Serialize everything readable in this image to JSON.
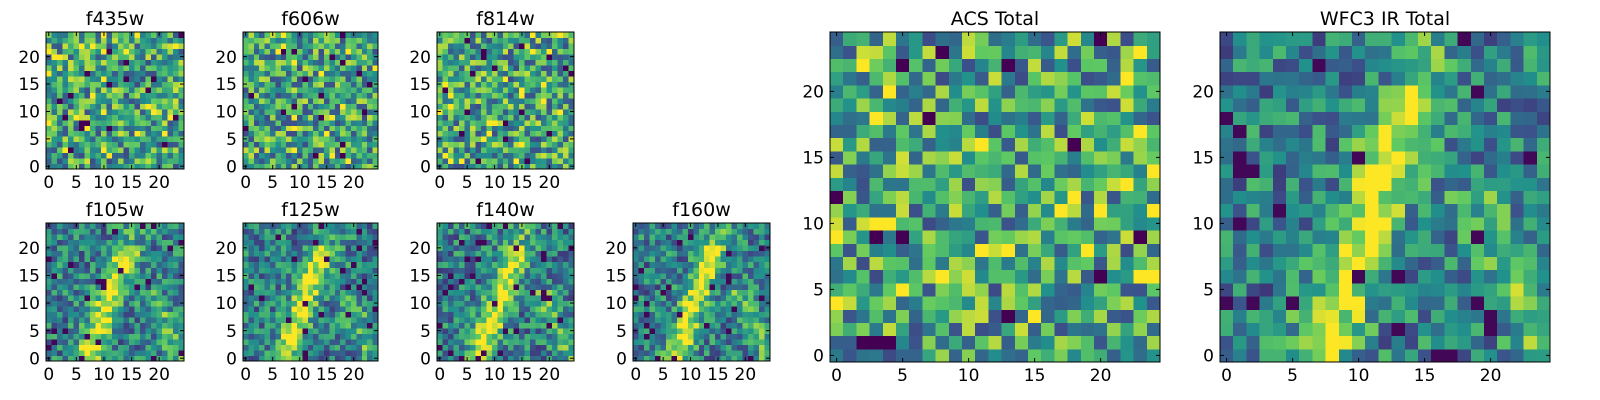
{
  "chart_data": [
    {
      "type": "heatmap",
      "title": "f435w",
      "xlim": [
        0,
        24
      ],
      "ylim": [
        0,
        24
      ],
      "xticks": [
        "0",
        "5",
        "10",
        "15",
        "20"
      ],
      "yticks": [
        "0",
        "5",
        "10",
        "15",
        "20"
      ],
      "grid": false,
      "pattern": "noise",
      "seed": 11
    },
    {
      "type": "heatmap",
      "title": "f606w",
      "xlim": [
        0,
        24
      ],
      "ylim": [
        0,
        24
      ],
      "xticks": [
        "0",
        "5",
        "10",
        "15",
        "20"
      ],
      "yticks": [
        "0",
        "5",
        "10",
        "15",
        "20"
      ],
      "grid": false,
      "pattern": "noise",
      "seed": 23
    },
    {
      "type": "heatmap",
      "title": "f814w",
      "xlim": [
        0,
        24
      ],
      "ylim": [
        0,
        24
      ],
      "xticks": [
        "0",
        "5",
        "10",
        "15",
        "20"
      ],
      "yticks": [
        "0",
        "5",
        "10",
        "15",
        "20"
      ],
      "grid": false,
      "pattern": "noise",
      "seed": 37
    },
    {
      "type": "heatmap",
      "title": "f105w",
      "xlim": [
        0,
        24
      ],
      "ylim": [
        0,
        24
      ],
      "xticks": [
        "0",
        "5",
        "10",
        "15",
        "20"
      ],
      "yticks": [
        "0",
        "5",
        "10",
        "15",
        "20"
      ],
      "grid": false,
      "pattern": "arc",
      "seed": 41
    },
    {
      "type": "heatmap",
      "title": "f125w",
      "xlim": [
        0,
        24
      ],
      "ylim": [
        0,
        24
      ],
      "xticks": [
        "0",
        "5",
        "10",
        "15",
        "20"
      ],
      "yticks": [
        "0",
        "5",
        "10",
        "15",
        "20"
      ],
      "grid": false,
      "pattern": "arc",
      "seed": 53
    },
    {
      "type": "heatmap",
      "title": "f140w",
      "xlim": [
        0,
        24
      ],
      "ylim": [
        0,
        24
      ],
      "xticks": [
        "0",
        "5",
        "10",
        "15",
        "20"
      ],
      "yticks": [
        "0",
        "5",
        "10",
        "15",
        "20"
      ],
      "grid": false,
      "pattern": "arc",
      "seed": 67
    },
    {
      "type": "heatmap",
      "title": "f160w",
      "xlim": [
        0,
        24
      ],
      "ylim": [
        0,
        24
      ],
      "xticks": [
        "0",
        "5",
        "10",
        "15",
        "20"
      ],
      "yticks": [
        "0",
        "5",
        "10",
        "15",
        "20"
      ],
      "grid": false,
      "pattern": "arc",
      "seed": 79
    },
    {
      "type": "heatmap",
      "title": "ACS Total",
      "xlim": [
        0,
        24
      ],
      "ylim": [
        0,
        24
      ],
      "xticks": [
        "0",
        "5",
        "10",
        "15",
        "20"
      ],
      "yticks": [
        "0",
        "5",
        "10",
        "15",
        "20"
      ],
      "grid": false,
      "pattern": "noise",
      "seed": 97
    },
    {
      "type": "heatmap",
      "title": "WFC3 IR Total",
      "xlim": [
        0,
        24
      ],
      "ylim": [
        0,
        24
      ],
      "xticks": [
        "0",
        "5",
        "10",
        "15",
        "20"
      ],
      "yticks": [
        "0",
        "5",
        "10",
        "15",
        "20"
      ],
      "grid": false,
      "pattern": "arc",
      "seed": 113
    }
  ],
  "colormap": [
    "#440154",
    "#3b528b",
    "#21918c",
    "#5ec962",
    "#fde725"
  ]
}
